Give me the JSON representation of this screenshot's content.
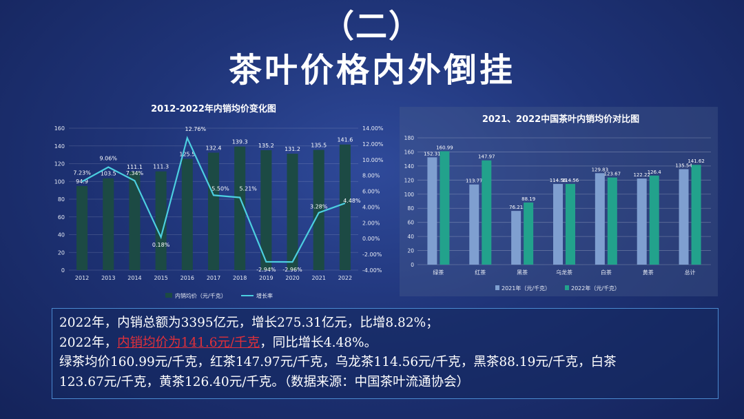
{
  "header": {
    "subtitle": "（二）",
    "title": "茶叶价格内外倒挂"
  },
  "chart_data": [
    {
      "type": "bar",
      "title": "2012-2022年内销均价变化图",
      "categories": [
        "2012",
        "2013",
        "2014",
        "2015",
        "2016",
        "2017",
        "2018",
        "2019",
        "2020",
        "2021",
        "2022"
      ],
      "series": [
        {
          "name": "内销均价（元/千克）",
          "values": [
            94.9,
            103.5,
            111.1,
            111.3,
            125.5,
            132.4,
            139.3,
            135.2,
            131.2,
            135.5,
            141.6
          ],
          "labels": [
            "94.9",
            "103.5",
            "111.1",
            "111.3",
            "125.5",
            "132.4",
            "139.3",
            "135.2",
            "131.2",
            "135.5",
            "141.6"
          ],
          "color": "#1c4a44"
        },
        {
          "name": "增长率",
          "values": [
            7.23,
            9.06,
            7.34,
            0.18,
            12.76,
            5.5,
            5.21,
            -2.94,
            -2.96,
            3.28,
            4.48
          ],
          "labels": [
            "7.23%",
            "9.06%",
            "7.34%",
            "0.18%",
            "12.76%",
            "5.50%",
            "5.21%",
            "-2.94%",
            "-2.96%",
            "3.28%",
            "4.48%"
          ],
          "color": "#4ccfe0"
        }
      ],
      "y_left": {
        "lim": [
          0,
          160
        ],
        "ticks": [
          "0",
          "20",
          "40",
          "60",
          "80",
          "100",
          "120",
          "140",
          "160"
        ]
      },
      "y_right": {
        "lim": [
          -4,
          14
        ],
        "ticks": [
          "-4.00%",
          "-2.00%",
          "0.00%",
          "2.00%",
          "4.00%",
          "6.00%",
          "8.00%",
          "10.00%",
          "12.00%",
          "14.00%"
        ]
      },
      "legend": "bottom"
    },
    {
      "type": "bar",
      "title": "2021、2022中国茶叶内销均价对比图",
      "categories": [
        "绿茶",
        "红茶",
        "黑茶",
        "乌龙茶",
        "白茶",
        "黄茶",
        "总计"
      ],
      "series": [
        {
          "name": "2021年（元/千克）",
          "values": [
            152.31,
            113.77,
            76.21,
            114.56,
            129.83,
            122.22,
            135.54
          ],
          "labels": [
            "152.31",
            "113.77",
            "76.21",
            "114.56",
            "129.83",
            "122.22",
            "135.54"
          ],
          "color": "#7f9fd0"
        },
        {
          "name": "2022年（元/千克）",
          "values": [
            160.99,
            147.97,
            88.19,
            114.56,
            123.67,
            126.4,
            141.62
          ],
          "labels": [
            "160.99",
            "147.97",
            "88.19",
            "114.56",
            "123.67",
            "126.4",
            "141.62"
          ],
          "color": "#22a28c"
        }
      ],
      "y": {
        "lim": [
          0,
          180
        ],
        "ticks": [
          "0",
          "20",
          "40",
          "60",
          "80",
          "100",
          "120",
          "140",
          "160",
          "180"
        ]
      },
      "legend": "bottom"
    }
  ],
  "text": {
    "line1": "2022年，内销总额为3395亿元，增长275.31亿元，比增8.82%；",
    "line2_a": "2022年，",
    "line2_red": "内销均价为141.6元/千克",
    "line2_b": "，同比增长4.48%。",
    "line3": "绿茶均价160.99元/千克，红茶147.97元/千克，乌龙茶114.56元/千克，黑茶88.19元/千克，白茶",
    "line4": "123.67元/千克，黄茶126.40元/千克。（数据来源：中国茶叶流通协会）"
  }
}
